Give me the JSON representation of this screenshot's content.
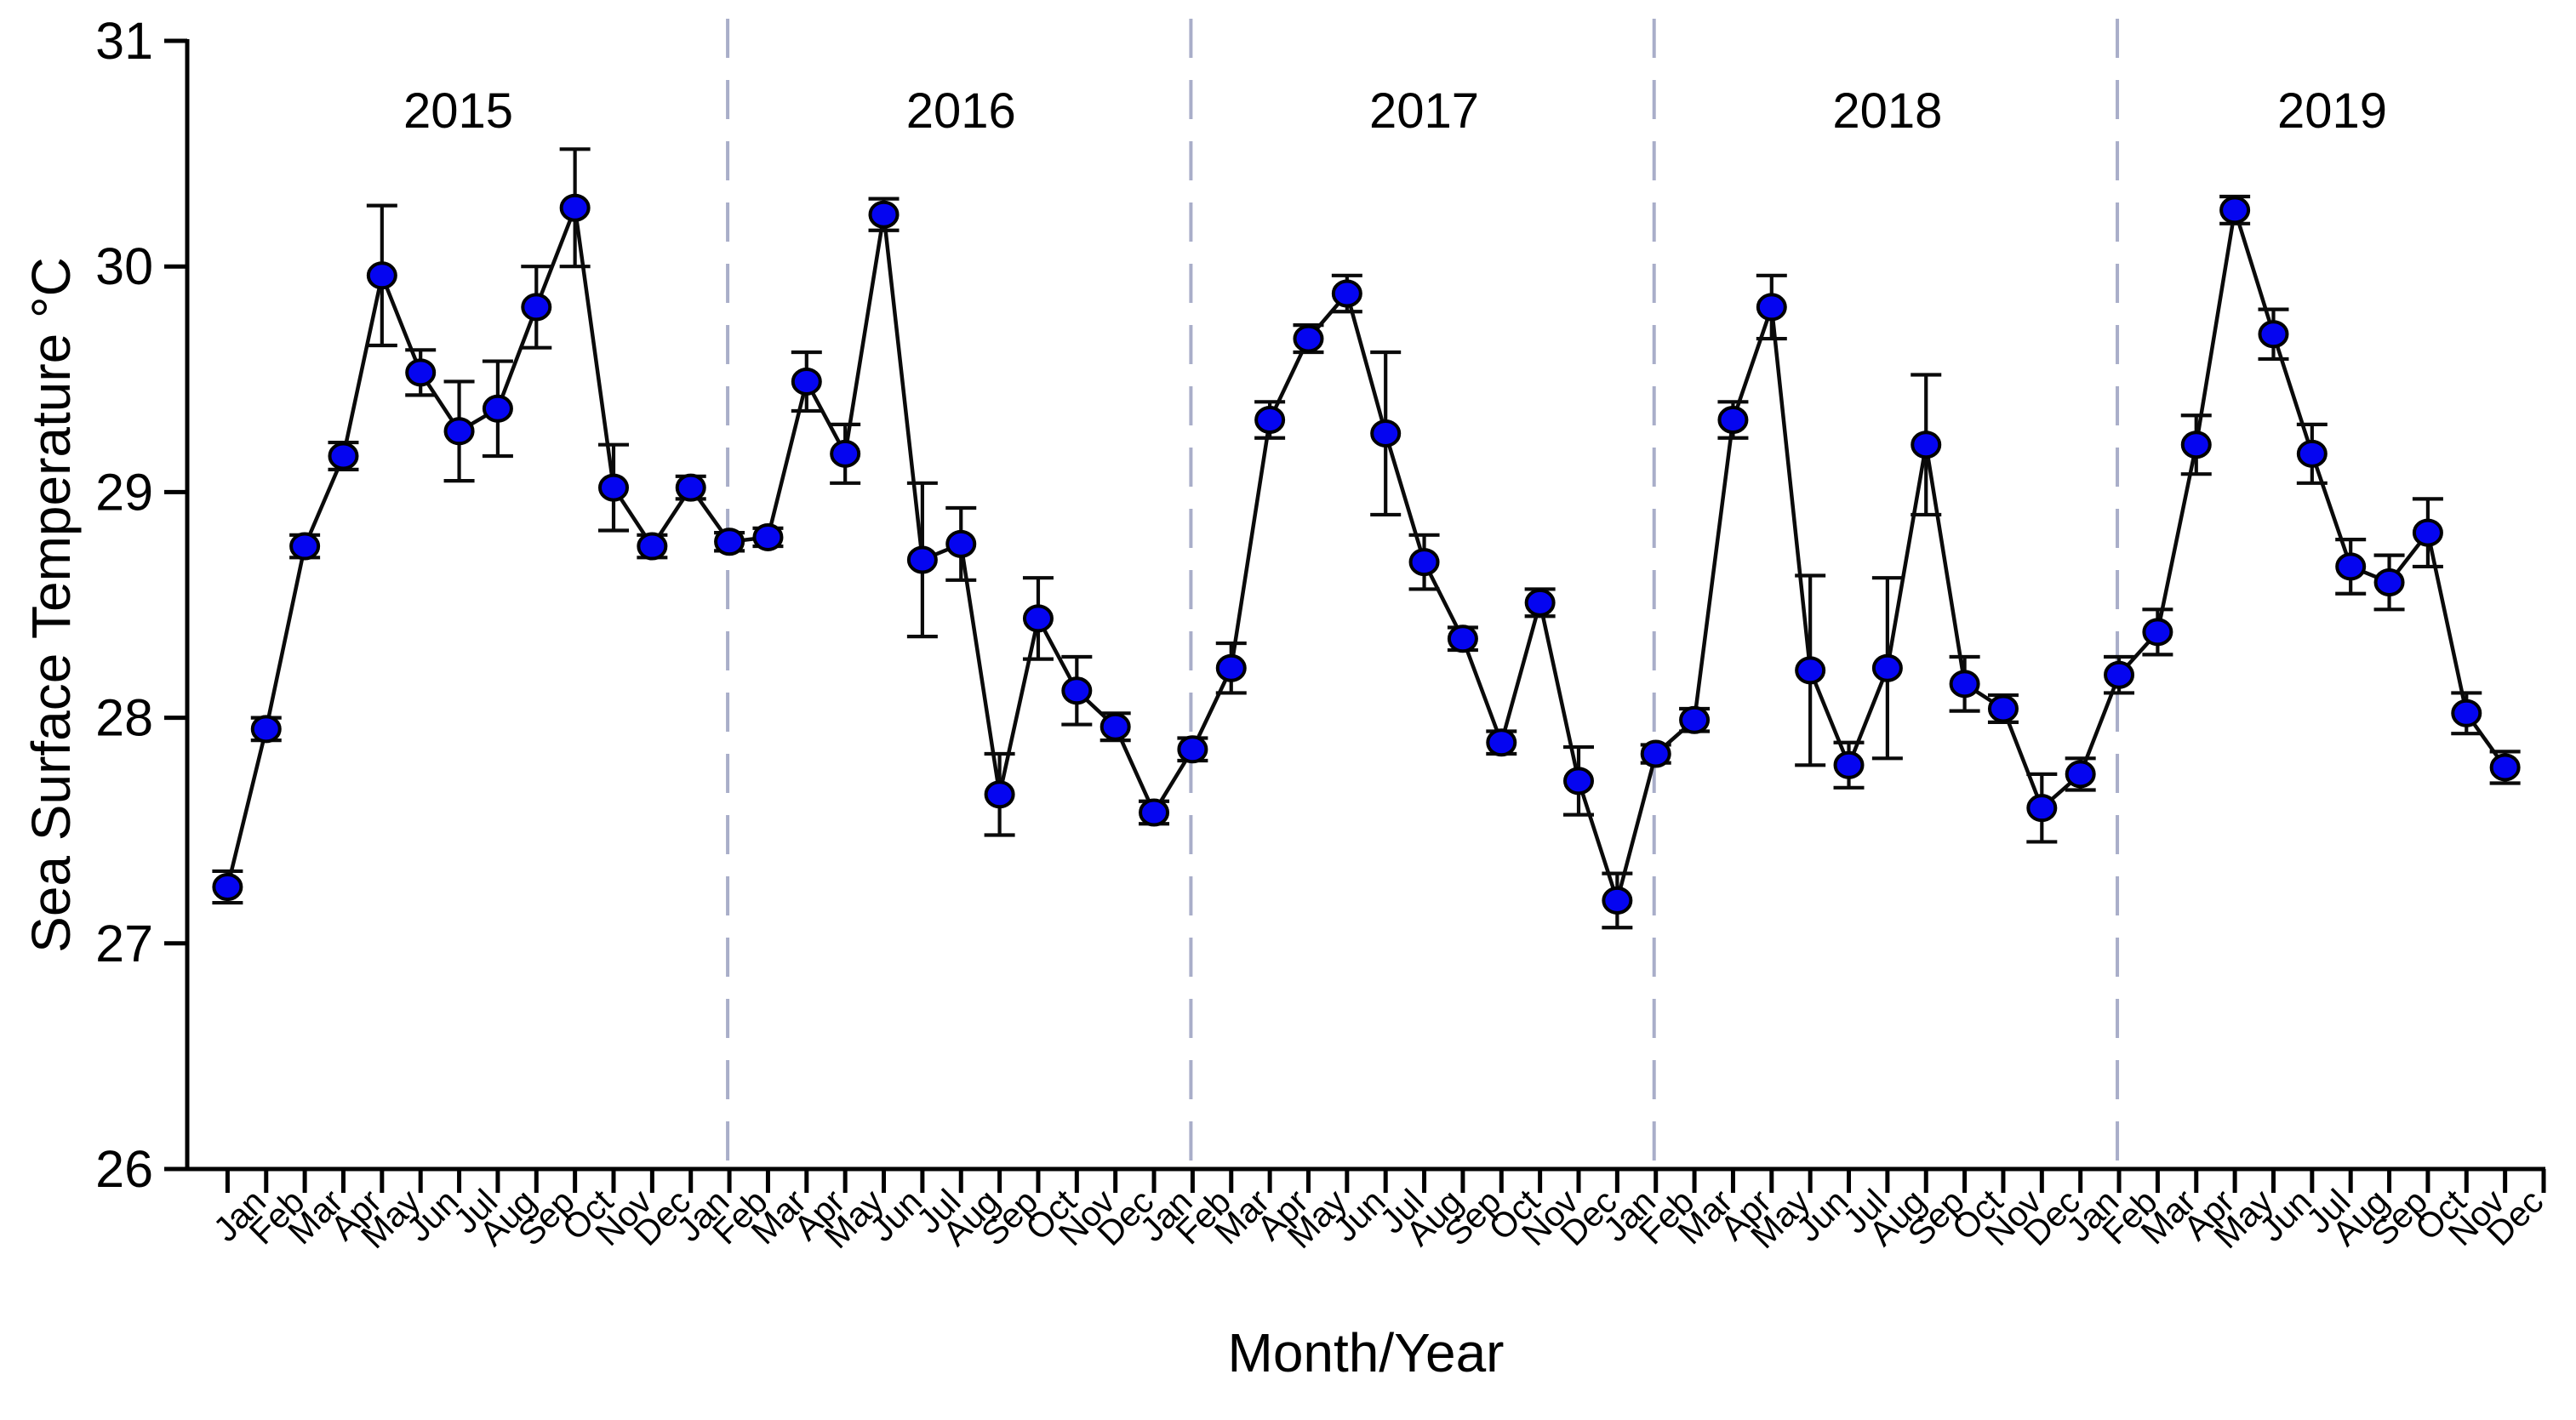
{
  "chart_data": {
    "type": "line",
    "title": "",
    "ylabel": "Sea Surface Temperature °C",
    "xlabel": "Month/Year",
    "ylim": [
      26,
      31
    ],
    "yticks": [
      26,
      27,
      28,
      29,
      30,
      31
    ],
    "grid": false,
    "legend": "none",
    "months": [
      "Jan",
      "Feb",
      "Mar",
      "Apr",
      "May",
      "Jun",
      "Jul",
      "Aug",
      "Sep",
      "Oct",
      "Nov",
      "Dec"
    ],
    "lead_in_point": {
      "note": "unlabeled point at first tick before Jan 2015",
      "value": 27.25,
      "error": 0.07
    },
    "series": [
      {
        "year": "2015",
        "values": [
          27.95,
          28.76,
          29.16,
          29.96,
          29.53,
          29.27,
          29.37,
          29.82,
          30.26,
          29.02,
          28.76,
          29.02
        ],
        "errors": [
          0.05,
          0.05,
          0.06,
          0.31,
          0.1,
          0.22,
          0.21,
          0.18,
          0.26,
          0.19,
          0.05,
          0.05
        ]
      },
      {
        "year": "2016",
        "values": [
          28.78,
          28.8,
          29.49,
          29.17,
          30.23,
          28.7,
          28.77,
          27.66,
          28.44,
          28.12,
          27.96,
          27.58
        ],
        "errors": [
          0.04,
          0.04,
          0.13,
          0.13,
          0.07,
          0.34,
          0.16,
          0.18,
          0.18,
          0.15,
          0.06,
          0.05
        ]
      },
      {
        "year": "2017",
        "values": [
          27.86,
          28.22,
          29.32,
          29.68,
          29.88,
          29.26,
          28.69,
          28.35,
          27.89,
          28.51,
          27.72,
          27.19
        ],
        "errors": [
          0.05,
          0.11,
          0.08,
          0.06,
          0.08,
          0.36,
          0.12,
          0.05,
          0.05,
          0.06,
          0.15,
          0.12
        ]
      },
      {
        "year": "2018",
        "values": [
          27.84,
          27.99,
          29.32,
          29.82,
          28.21,
          27.79,
          28.22,
          29.21,
          28.15,
          28.04,
          27.6,
          27.75
        ],
        "errors": [
          0.04,
          0.05,
          0.08,
          0.14,
          0.42,
          0.1,
          0.4,
          0.31,
          0.12,
          0.06,
          0.15,
          0.07
        ]
      },
      {
        "year": "2019",
        "values": [
          28.19,
          28.38,
          29.21,
          30.25,
          29.7,
          29.17,
          28.67,
          28.6,
          28.82,
          28.02,
          27.78,
          null
        ],
        "errors": [
          0.08,
          0.1,
          0.13,
          0.06,
          0.11,
          0.13,
          0.12,
          0.12,
          0.15,
          0.09,
          0.07,
          null
        ]
      }
    ],
    "colors": {
      "point_fill": "#0505f0",
      "point_stroke": "#000000",
      "line": "#0a0a0a",
      "error_bar": "#0a0a0a",
      "axis": "#000000",
      "year_separator": "#a9aec9",
      "background": "#ffffff",
      "text": "#000000"
    },
    "layout_note": "dashed vertical separators pass through each January point; year labels centered between separators; final Dec 2019 tick has no data point"
  }
}
